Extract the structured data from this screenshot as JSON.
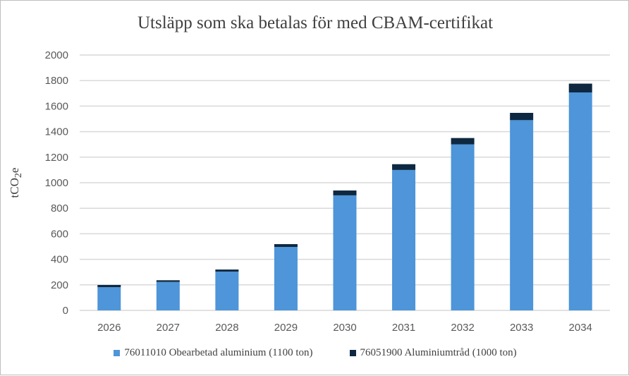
{
  "chart_data": {
    "type": "bar",
    "stacked": true,
    "title": "Utsläpp som ska betalas för med CBAM-certifikat",
    "ylabel": "tCO",
    "ylabel_sub": "2",
    "ylabel_suffix": "e",
    "xlabel": "",
    "ylim": [
      0,
      2000
    ],
    "yticks": [
      0,
      200,
      400,
      600,
      800,
      1000,
      1200,
      1400,
      1600,
      1800,
      2000
    ],
    "grid": true,
    "legend": "bottom",
    "categories": [
      "2026",
      "2027",
      "2028",
      "2029",
      "2030",
      "2031",
      "2032",
      "2033",
      "2034"
    ],
    "series": [
      {
        "name": "76011010 Obearbetad aluminium (1100 ton)",
        "color": "#4e95d9",
        "values": [
          182,
          223,
          304,
          497,
          901,
          1100,
          1300,
          1490,
          1707
        ]
      },
      {
        "name": "76051900 Aluminiumtråd (1000 ton)",
        "color": "#0e2841",
        "values": [
          17,
          13,
          16,
          22,
          38,
          45,
          50,
          57,
          69
        ]
      }
    ]
  }
}
